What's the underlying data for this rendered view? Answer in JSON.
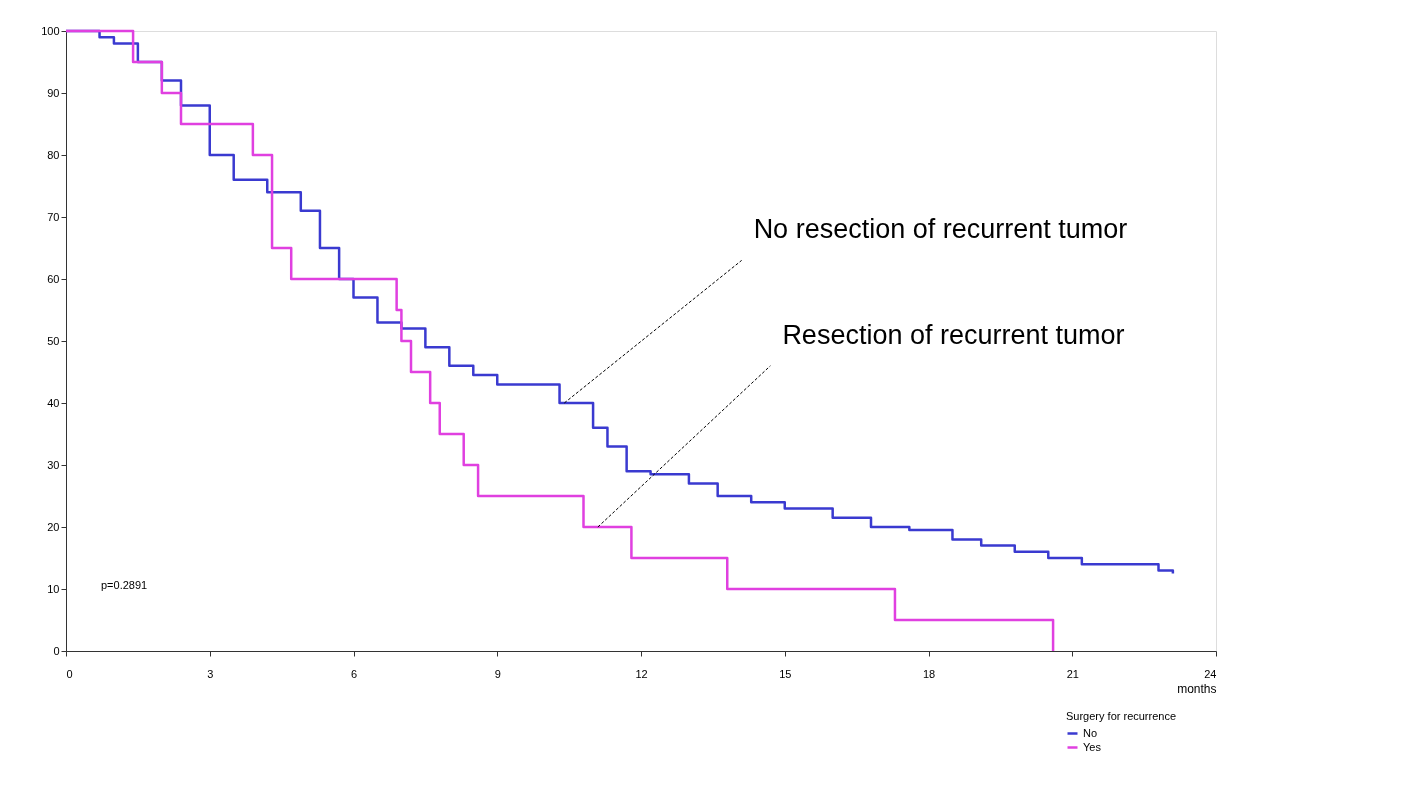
{
  "chart_data": {
    "type": "step",
    "xlabel": "months",
    "legend_title": "Surgery for recurrence",
    "legend": "bottom right",
    "grid": false,
    "marker": "none",
    "line_style": "solid",
    "xlim": [
      0,
      24
    ],
    "xticks": [
      0,
      3,
      6,
      9,
      12,
      15,
      18,
      21,
      24
    ],
    "ylim": [
      0,
      100
    ],
    "yticks": [
      0,
      10,
      20,
      30,
      40,
      50,
      60,
      70,
      80,
      90,
      100
    ],
    "series": [
      {
        "name": "No",
        "color": "#3a3ad0",
        "x": [
          0,
          0.7,
          1.0,
          1.5,
          2.0,
          2.4,
          3.0,
          3.5,
          4.2,
          4.9,
          5.3,
          5.7,
          6.0,
          6.5,
          7.0,
          7.5,
          8.0,
          8.5,
          9.0,
          9.6,
          10.3,
          11.0,
          11.3,
          11.7,
          12.2,
          13.0,
          13.6,
          14.3,
          15.0,
          16.0,
          16.8,
          17.6,
          18.5,
          19.1,
          19.8,
          20.5,
          21.2,
          22.0,
          22.8,
          23.1
        ],
        "values": [
          100,
          99,
          98,
          95,
          92,
          88,
          80,
          76,
          74,
          71,
          65,
          60,
          57,
          53,
          52,
          49,
          46,
          44.5,
          43,
          43,
          40,
          36,
          33,
          29,
          28.5,
          27,
          25,
          24,
          23,
          21.5,
          20,
          19.5,
          18,
          17,
          16,
          15,
          14,
          14,
          13,
          12.5
        ]
      },
      {
        "name": "Yes",
        "color": "#e040e0",
        "x": [
          0,
          1.4,
          2.0,
          2.4,
          3.9,
          4.3,
          4.7,
          6.9,
          7.0,
          7.2,
          7.6,
          7.8,
          8.3,
          8.6,
          10.8,
          11.8,
          13.8,
          17.3,
          20.6
        ],
        "values": [
          100,
          95,
          90,
          85,
          80,
          65,
          60,
          55,
          50,
          45,
          40,
          35,
          30,
          25,
          20,
          15,
          10,
          5,
          0
        ]
      }
    ],
    "annotations": [
      {
        "text": "No resection of recurrent tumor",
        "x": 10.4,
        "y": 40
      },
      {
        "text": "Resection of recurrent tumor",
        "x": 11.1,
        "y": 20
      },
      "p=0.2891"
    ]
  }
}
